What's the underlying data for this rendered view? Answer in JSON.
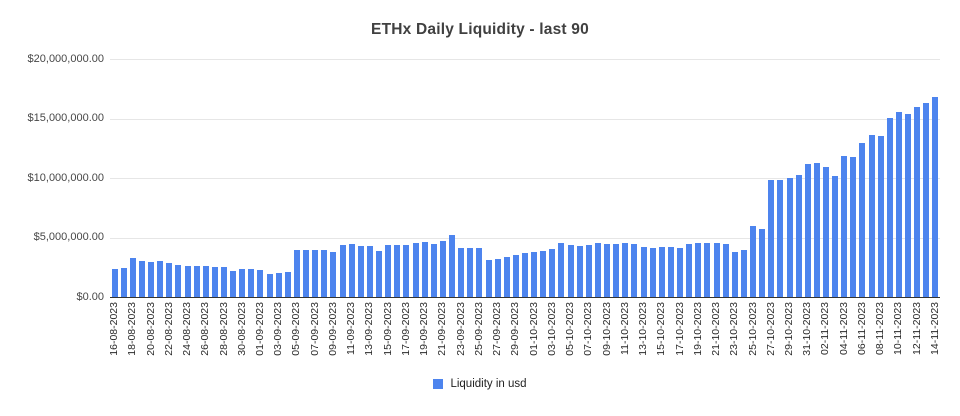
{
  "title": "ETHx Daily Liquidity - last 90",
  "legend": {
    "label": "Liquidity in usd"
  },
  "y_axis": {
    "tick_values": [
      0,
      5000000,
      10000000,
      15000000,
      20000000
    ],
    "tick_labels": [
      "$0.00",
      "$5,000,000.00",
      "$10,000,000.00",
      "$15,000,000.00",
      "$20,000,000.00"
    ]
  },
  "chart_data": {
    "type": "bar",
    "title": "ETHx Daily Liquidity - last 90",
    "series_name": "Liquidity in usd",
    "bar_color": "#4d84ee",
    "grid": true,
    "legend_position": "bottom",
    "ylim": [
      0,
      20000000
    ],
    "ylabel": "",
    "xlabel": "",
    "x_tick_every": 2,
    "categories": [
      "16-08-2023",
      "17-08-2023",
      "18-08-2023",
      "19-08-2023",
      "20-08-2023",
      "21-08-2023",
      "22-08-2023",
      "23-08-2023",
      "24-08-2023",
      "25-08-2023",
      "26-08-2023",
      "27-08-2023",
      "28-08-2023",
      "29-08-2023",
      "30-08-2023",
      "31-08-2023",
      "01-09-2023",
      "02-09-2023",
      "03-09-2023",
      "04-09-2023",
      "05-09-2023",
      "06-09-2023",
      "07-09-2023",
      "08-09-2023",
      "09-09-2023",
      "10-09-2023",
      "11-09-2023",
      "12-09-2023",
      "13-09-2023",
      "14-09-2023",
      "15-09-2023",
      "16-09-2023",
      "17-09-2023",
      "18-09-2023",
      "19-09-2023",
      "20-09-2023",
      "21-09-2023",
      "22-09-2023",
      "23-09-2023",
      "24-09-2023",
      "25-09-2023",
      "26-09-2023",
      "27-09-2023",
      "28-09-2023",
      "29-09-2023",
      "30-09-2023",
      "01-10-2023",
      "02-10-2023",
      "03-10-2023",
      "04-10-2023",
      "05-10-2023",
      "06-10-2023",
      "07-10-2023",
      "08-10-2023",
      "09-10-2023",
      "10-10-2023",
      "11-10-2023",
      "12-10-2023",
      "13-10-2023",
      "14-10-2023",
      "15-10-2023",
      "16-10-2023",
      "17-10-2023",
      "18-10-2023",
      "19-10-2023",
      "20-10-2023",
      "21-10-2023",
      "22-10-2023",
      "23-10-2023",
      "24-10-2023",
      "25-10-2023",
      "26-10-2023",
      "27-10-2023",
      "28-10-2023",
      "29-10-2023",
      "30-10-2023",
      "31-10-2023",
      "01-11-2023",
      "02-11-2023",
      "03-11-2023",
      "04-11-2023",
      "05-11-2023",
      "06-11-2023",
      "07-11-2023",
      "08-11-2023",
      "09-11-2023",
      "10-11-2023",
      "11-11-2023",
      "12-11-2023",
      "13-11-2023",
      "14-11-2023"
    ],
    "values": [
      2380000,
      2460000,
      3250000,
      3030000,
      2940000,
      3030000,
      2860000,
      2690000,
      2630000,
      2600000,
      2580000,
      2550000,
      2560000,
      2180000,
      2380000,
      2330000,
      2300000,
      1960000,
      2040000,
      2060000,
      3950000,
      3920000,
      3980000,
      3930000,
      3760000,
      4350000,
      4430000,
      4320000,
      4260000,
      3840000,
      4410000,
      4350000,
      4410000,
      4550000,
      4630000,
      4490000,
      4680000,
      5250000,
      4120000,
      4150000,
      4150000,
      3080000,
      3220000,
      3360000,
      3500000,
      3670000,
      3760000,
      3900000,
      4040000,
      4550000,
      4380000,
      4260000,
      4380000,
      4550000,
      4460000,
      4460000,
      4550000,
      4460000,
      4200000,
      4120000,
      4240000,
      4180000,
      4120000,
      4470000,
      4520000,
      4520000,
      4520000,
      4470000,
      3760000,
      3960000,
      5930000,
      5740000,
      9830000,
      9830000,
      9970000,
      10250000,
      11190000,
      11300000,
      10960000,
      10170000,
      11860000,
      11750000,
      12940000,
      13600000,
      13560000,
      15080000,
      15510000,
      15420000,
      15960000,
      16330000,
      16810000
    ]
  }
}
